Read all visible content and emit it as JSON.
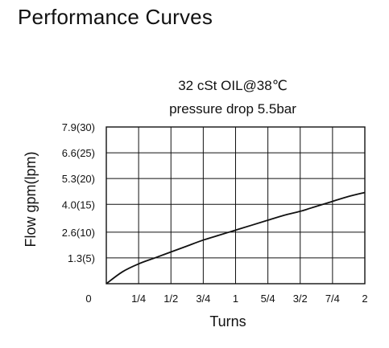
{
  "page": {
    "title": "Performance Curves"
  },
  "chart_data": {
    "type": "line",
    "title": "32 cSt OIL@38℃",
    "subtitle": "pressure  drop 5.5bar",
    "xlabel": "Turns",
    "ylabel": "Flow gpm(lpm)",
    "x_ticks": [
      {
        "value": 0,
        "label": "0"
      },
      {
        "value": 0.25,
        "label": "1/4"
      },
      {
        "value": 0.5,
        "label": "1/2"
      },
      {
        "value": 0.75,
        "label": "3/4"
      },
      {
        "value": 1,
        "label": "1"
      },
      {
        "value": 1.25,
        "label": "5/4"
      },
      {
        "value": 1.5,
        "label": "3/2"
      },
      {
        "value": 1.75,
        "label": "7/4"
      },
      {
        "value": 2,
        "label": "2"
      }
    ],
    "y_ticks": [
      {
        "value": 1.3,
        "label": "1.3(5)"
      },
      {
        "value": 2.6,
        "label": "2.6(10)"
      },
      {
        "value": 4.0,
        "label": "4.0(15)"
      },
      {
        "value": 5.3,
        "label": "5.3(20)"
      },
      {
        "value": 6.6,
        "label": "6.6(25)"
      },
      {
        "value": 7.9,
        "label": "7.9(30)"
      }
    ],
    "xlim": [
      0,
      2
    ],
    "ylim": [
      0,
      7.9
    ],
    "grid": true,
    "series": [
      {
        "x": [
          0,
          0.125,
          0.25,
          0.375,
          0.5,
          0.625,
          0.75,
          0.875,
          1.0,
          1.125,
          1.25,
          1.375,
          1.5,
          1.625,
          1.75,
          1.875,
          2.0
        ],
        "y": [
          0,
          0.6,
          1.0,
          1.3,
          1.6,
          1.9,
          2.2,
          2.45,
          2.7,
          2.95,
          3.2,
          3.45,
          3.65,
          3.9,
          4.15,
          4.4,
          4.6
        ]
      }
    ]
  }
}
